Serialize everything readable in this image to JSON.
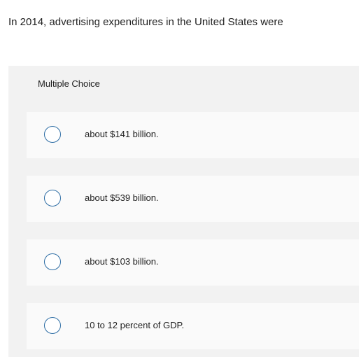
{
  "question": {
    "text": "In 2014, advertising expenditures in the United States were"
  },
  "multiple_choice": {
    "header": "Multiple Choice",
    "options": [
      {
        "label": "about $141 billion."
      },
      {
        "label": "about $539 billion."
      },
      {
        "label": "about $103 billion."
      },
      {
        "label": "10 to 12 percent of GDP."
      }
    ]
  },
  "colors": {
    "radio_border": "#2f6ea5",
    "panel_background": "#f2f2f2",
    "option_background": "#fafafa"
  }
}
